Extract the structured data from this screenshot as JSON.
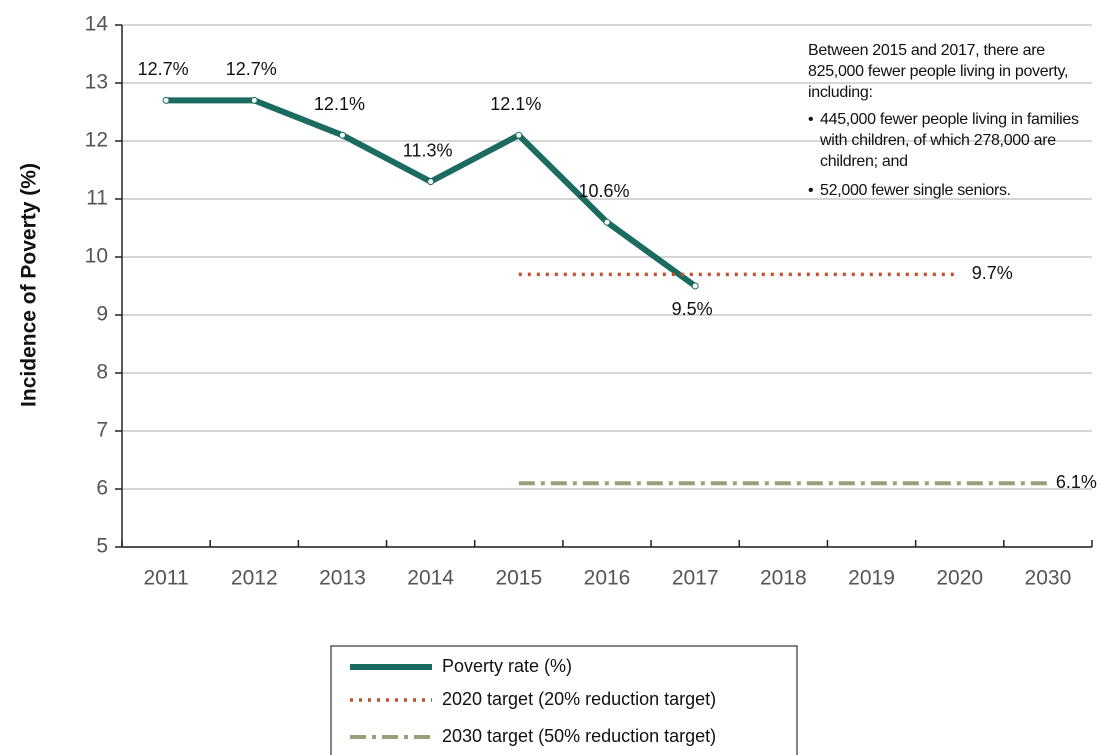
{
  "chart_data": {
    "type": "line",
    "y_label": "Incidence of Poverty (%)",
    "categories": [
      "2011",
      "2012",
      "2013",
      "2014",
      "2015",
      "2016",
      "2017",
      "2018",
      "2019",
      "2020",
      "2030"
    ],
    "ylim": [
      5,
      14
    ],
    "yticks": [
      5,
      6,
      7,
      8,
      9,
      10,
      11,
      12,
      13,
      14
    ],
    "grid": true,
    "series": [
      {
        "name": "Poverty rate (%)",
        "color": "#1b6b5f",
        "style": "solid",
        "values": [
          12.7,
          12.7,
          12.1,
          11.3,
          12.1,
          10.6,
          9.5,
          null,
          null,
          null,
          null
        ],
        "value_labels": [
          "12.7%",
          "12.7%",
          "12.1%",
          "11.3%",
          "12.1%",
          "10.6%",
          "9.5%",
          null,
          null,
          null,
          null
        ]
      },
      {
        "name": "2020 target (20% reduction target)",
        "color": "#c0502d",
        "style": "dotted",
        "values": [
          null,
          null,
          null,
          null,
          9.7,
          9.7,
          9.7,
          9.7,
          9.7,
          9.7,
          null
        ],
        "value_labels": [
          null,
          null,
          null,
          null,
          null,
          null,
          null,
          null,
          null,
          "9.7%",
          null
        ]
      },
      {
        "name": "2030 target (50% reduction target)",
        "color": "#9a9e7b",
        "style": "dashdot",
        "values": [
          null,
          null,
          null,
          null,
          6.1,
          6.1,
          6.1,
          6.1,
          6.1,
          6.1,
          6.1
        ],
        "value_labels": [
          null,
          null,
          null,
          null,
          null,
          null,
          null,
          null,
          null,
          null,
          "6.1%"
        ]
      }
    ],
    "annotation": {
      "intro": "Between 2015 and 2017, there are 825,000 fewer people living in poverty, including:",
      "bullets": [
        "445,000 fewer people living in families with children, of which 278,000 are children; and",
        "52,000 fewer single seniors."
      ]
    }
  }
}
